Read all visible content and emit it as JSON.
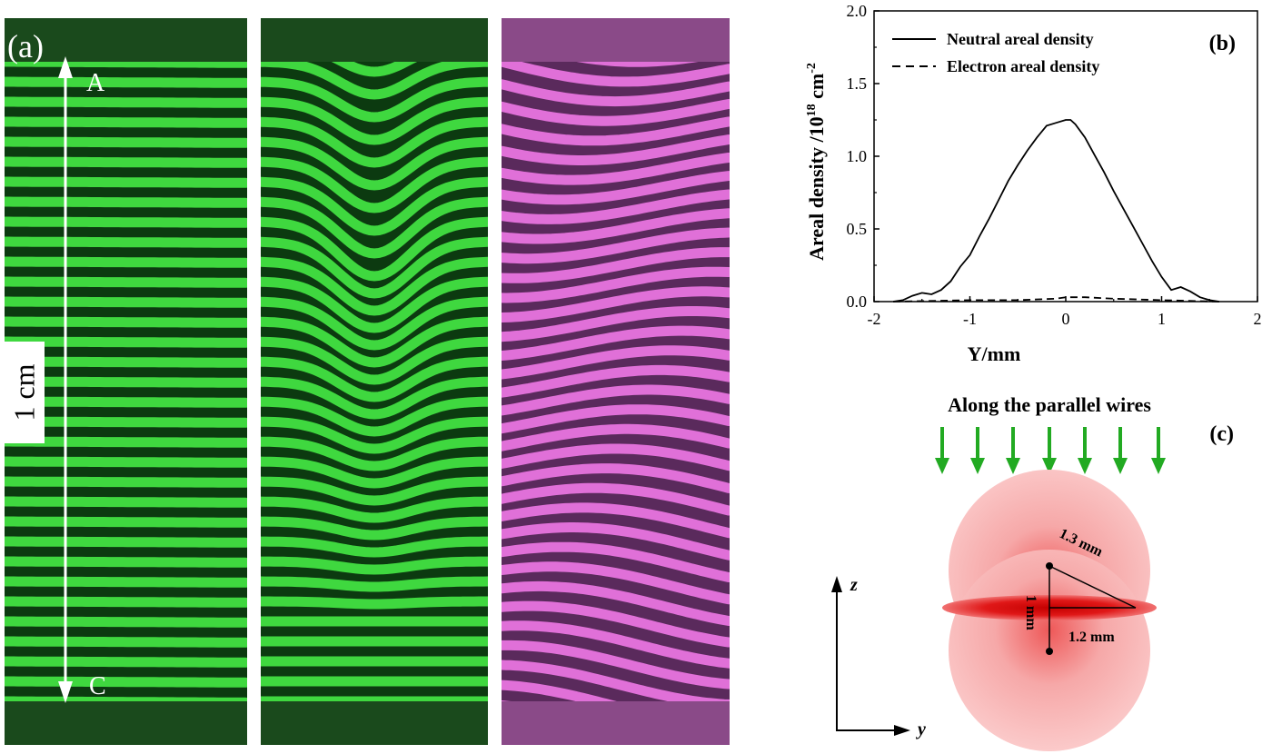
{
  "panel_a": {
    "label": "(a)",
    "point_top": "A",
    "point_bottom": "C",
    "scale_bar": "1 cm"
  },
  "chart_data": {
    "type": "line",
    "panel_label": "(b)",
    "xlabel": "Y/mm",
    "ylabel": "Areal density /10",
    "ylabel_exp": "18",
    "ylabel_unit": " cm",
    "ylabel_unit_exp": "-2",
    "xlim": [
      -2,
      2
    ],
    "ylim": [
      0,
      2.0
    ],
    "xticks": [
      "-2",
      "-1",
      "0",
      "1",
      "2"
    ],
    "yticks": [
      "0.0",
      "0.5",
      "1.0",
      "1.5",
      "2.0"
    ],
    "legend_position": "top-left",
    "series": [
      {
        "name": "Neutral areal density",
        "style": "solid",
        "x": [
          -1.8,
          -1.7,
          -1.6,
          -1.5,
          -1.4,
          -1.3,
          -1.2,
          -1.1,
          -1.0,
          -0.9,
          -0.8,
          -0.7,
          -0.6,
          -0.5,
          -0.4,
          -0.3,
          -0.2,
          -0.1,
          0.0,
          0.05,
          0.1,
          0.2,
          0.3,
          0.4,
          0.5,
          0.6,
          0.7,
          0.8,
          0.9,
          1.0,
          1.1,
          1.2,
          1.3,
          1.4,
          1.5,
          1.6
        ],
        "y": [
          0.0,
          0.01,
          0.04,
          0.06,
          0.05,
          0.08,
          0.14,
          0.24,
          0.32,
          0.45,
          0.57,
          0.7,
          0.83,
          0.94,
          1.04,
          1.13,
          1.21,
          1.23,
          1.25,
          1.25,
          1.22,
          1.13,
          1.01,
          0.89,
          0.76,
          0.64,
          0.52,
          0.4,
          0.28,
          0.17,
          0.08,
          0.1,
          0.07,
          0.03,
          0.01,
          0.0
        ]
      },
      {
        "name": "Electron areal density",
        "style": "dashed",
        "x": [
          -1.8,
          -1.0,
          -0.5,
          -0.1,
          0.0,
          0.2,
          0.5,
          1.0,
          1.6
        ],
        "y": [
          0.0,
          0.01,
          0.01,
          0.02,
          0.03,
          0.03,
          0.02,
          0.01,
          0.0
        ]
      }
    ]
  },
  "panel_c": {
    "label": "(c)",
    "title": "Along the parallel wires",
    "axis_z": "z",
    "axis_y": "y",
    "dim_hyp": "1.3 mm",
    "dim_vert": "1 mm",
    "dim_horiz": "1.2 mm",
    "colors": {
      "arrow": "#22aa22",
      "sphere": "#f7b0b0",
      "disk": "#e01818"
    }
  },
  "colors": {
    "green_fringe": "#3fd83f",
    "magenta_fringe": "#e070d8",
    "dark_green": "#0c3a10"
  }
}
